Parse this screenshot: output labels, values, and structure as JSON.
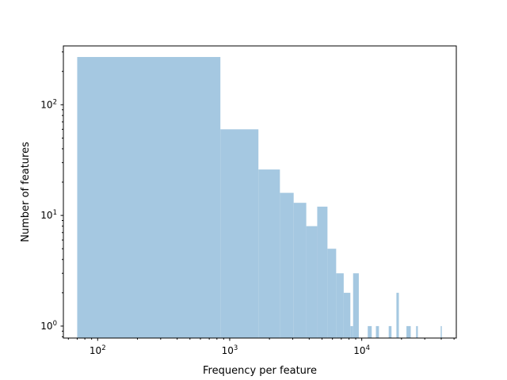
{
  "chart_data": {
    "type": "bar",
    "subtype": "histogram",
    "title": "",
    "xlabel": "Frequency per feature",
    "ylabel": "Number of features",
    "xscale": "log",
    "yscale": "log",
    "xlim": [
      55,
      52000
    ],
    "ylim": [
      0.78,
      340
    ],
    "grid": false,
    "legend": "none",
    "bar_color": "#a5c8e1",
    "x_tick_labels": [
      {
        "base": "10",
        "exp": "2",
        "value": 100
      },
      {
        "base": "10",
        "exp": "3",
        "value": 1000
      },
      {
        "base": "10",
        "exp": "4",
        "value": 10000
      }
    ],
    "y_tick_labels": [
      {
        "base": "10",
        "exp": "0",
        "value": 1
      },
      {
        "base": "10",
        "exp": "1",
        "value": 10
      },
      {
        "base": "10",
        "exp": "2",
        "value": 100
      }
    ],
    "bins": [
      {
        "x0": 70,
        "x1": 850,
        "count": 270
      },
      {
        "x0": 850,
        "x1": 1650,
        "count": 60
      },
      {
        "x0": 1650,
        "x1": 2400,
        "count": 26
      },
      {
        "x0": 2400,
        "x1": 3050,
        "count": 16
      },
      {
        "x0": 3050,
        "x1": 3800,
        "count": 13
      },
      {
        "x0": 3800,
        "x1": 4600,
        "count": 8
      },
      {
        "x0": 4600,
        "x1": 5500,
        "count": 12
      },
      {
        "x0": 5500,
        "x1": 6400,
        "count": 5
      },
      {
        "x0": 6400,
        "x1": 7300,
        "count": 3
      },
      {
        "x0": 7300,
        "x1": 8200,
        "count": 2
      },
      {
        "x0": 8200,
        "x1": 8600,
        "count": 1
      },
      {
        "x0": 8600,
        "x1": 9500,
        "count": 3
      },
      {
        "x0": 11100,
        "x1": 11900,
        "count": 1
      },
      {
        "x0": 12800,
        "x1": 13500,
        "count": 1
      },
      {
        "x0": 16000,
        "x1": 16800,
        "count": 1
      },
      {
        "x0": 18300,
        "x1": 19100,
        "count": 2
      },
      {
        "x0": 21800,
        "x1": 23500,
        "count": 1
      },
      {
        "x0": 25800,
        "x1": 26600,
        "count": 1
      },
      {
        "x0": 39600,
        "x1": 40400,
        "count": 1
      }
    ]
  }
}
